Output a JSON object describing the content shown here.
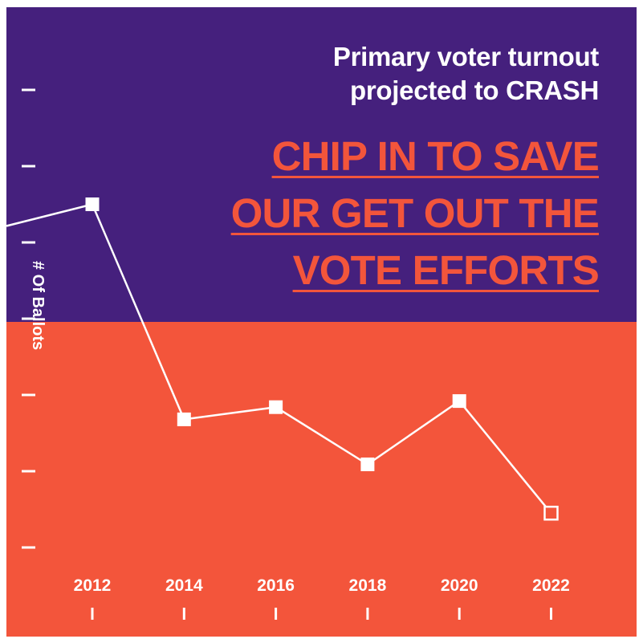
{
  "headline": {
    "line1": "Primary voter turnout",
    "line2": "projected to CRASH"
  },
  "cta": {
    "line1": "CHIP IN TO SAVE",
    "line2": "OUR GET OUT THE",
    "line3": "VOTE EFFORTS"
  },
  "colors": {
    "purple": "#45207d",
    "coral": "#f3553b",
    "white": "#ffffff"
  },
  "chart_data": {
    "type": "line",
    "title": "Primary voter turnout projected to CRASH",
    "xlabel": "",
    "ylabel": "# Of Ballots",
    "categories": [
      "2012",
      "2014",
      "2016",
      "2018",
      "2020",
      "2022"
    ],
    "series": [
      {
        "name": "Primary voter turnout",
        "values": [
          4.5,
          1.68,
          1.84,
          1.09,
          1.92,
          0.45
        ],
        "projected": [
          false,
          false,
          false,
          false,
          false,
          true
        ]
      }
    ],
    "ylim": [
      0,
      6
    ],
    "grid": false,
    "legend": "none"
  }
}
